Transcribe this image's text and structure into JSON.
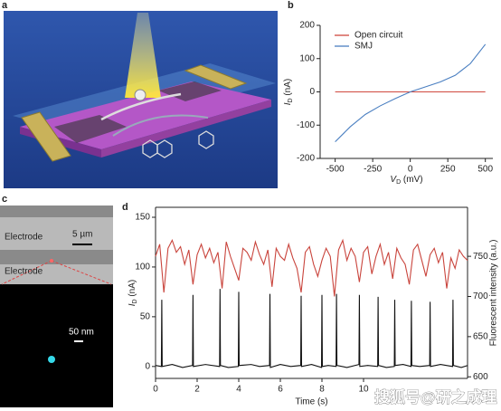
{
  "panel_labels": [
    "a",
    "b",
    "c",
    "d"
  ],
  "image_c": {
    "electrode_top": "Electrode",
    "scale_top": "5 µm",
    "electrode_bottom": "Electrode",
    "scale_bottom": "50 nm"
  },
  "watermark": "搜狐号@研之成理",
  "chart_data": [
    {
      "type": "line",
      "xlabel": [
        "V",
        "D",
        " (mV)"
      ],
      "ylabel": [
        "I",
        "D",
        " (nA)"
      ],
      "x": [
        -500,
        -400,
        -300,
        -200,
        -100,
        0,
        100,
        200,
        300,
        400,
        500
      ],
      "series": [
        {
          "name": "Open circuit",
          "color": "#d0493f",
          "values": [
            0,
            0,
            0,
            0,
            0,
            0,
            0,
            0,
            0,
            0,
            0
          ]
        },
        {
          "name": "SMJ",
          "color": "#4a7fc1",
          "values": [
            -150,
            -105,
            -68,
            -42,
            -20,
            0,
            15,
            30,
            50,
            85,
            143
          ]
        }
      ],
      "xlim": [
        -600,
        550
      ],
      "xticks": [
        -500,
        -250,
        0,
        250,
        500
      ],
      "ylim": [
        -200,
        200
      ],
      "yticks": [
        -200,
        -100,
        0,
        100,
        200
      ],
      "frame": "open",
      "legend": "upper left"
    },
    {
      "type": "line",
      "xlabel": "Time (s)",
      "ylabel": [
        "I",
        "D",
        " (nA)"
      ],
      "y2label": "Fluorescent intensity (a.u.)",
      "series": [
        {
          "color": "#c9443c",
          "axis": "y2",
          "x": [
            0,
            0.2,
            0.4,
            0.6,
            0.8,
            1.0,
            1.2,
            1.4,
            1.6,
            1.8,
            2.0,
            2.2,
            2.4,
            2.6,
            2.8,
            3.0,
            3.2,
            3.4,
            3.6,
            3.8,
            4.0,
            4.2,
            4.4,
            4.6,
            4.8,
            5.0,
            5.2,
            5.4,
            5.6,
            5.8,
            6.0,
            6.2,
            6.4,
            6.6,
            6.8,
            7.0,
            7.2,
            7.4,
            7.6,
            7.8,
            8.0,
            8.2,
            8.4,
            8.6,
            8.8,
            9.0,
            9.2,
            9.4,
            9.6,
            9.8,
            10.0,
            10.2,
            10.4,
            10.6,
            10.8,
            11.0,
            11.2,
            11.4,
            11.6,
            11.8,
            12.0,
            12.2,
            12.4,
            12.6,
            12.8,
            13.0,
            13.2,
            13.4,
            13.6,
            13.8,
            14.0,
            14.2,
            14.4,
            14.6,
            14.8,
            15.0
          ],
          "values": [
            750,
            765,
            705,
            760,
            770,
            755,
            762,
            740,
            758,
            715,
            752,
            765,
            748,
            760,
            742,
            755,
            710,
            768,
            750,
            735,
            720,
            760,
            755,
            745,
            768,
            752,
            740,
            758,
            712,
            760,
            750,
            745,
            765,
            748,
            735,
            705,
            755,
            762,
            740,
            725,
            745,
            760,
            750,
            700,
            758,
            770,
            745,
            760,
            750,
            718,
            755,
            762,
            728,
            750,
            765,
            740,
            755,
            722,
            760,
            748,
            740,
            715,
            758,
            765,
            745,
            725,
            752,
            760,
            742,
            755,
            710,
            748,
            735,
            758,
            750,
            745
          ]
        },
        {
          "color": "#111111",
          "x": [
            0,
            0.28,
            0.3,
            0.32,
            0.8,
            1.3,
            1.78,
            1.8,
            1.82,
            2.4,
            3.08,
            3.1,
            3.12,
            3.5,
            3.98,
            4.0,
            4.02,
            4.6,
            5.0,
            5.48,
            5.5,
            5.52,
            6.0,
            6.5,
            6.98,
            7.0,
            7.02,
            7.5,
            7.98,
            8.0,
            8.02,
            8.3,
            8.68,
            8.7,
            8.72,
            9.2,
            9.78,
            9.8,
            9.82,
            10.2,
            10.68,
            10.7,
            10.72,
            11.1,
            11.48,
            11.5,
            11.52,
            11.9,
            12.28,
            12.3,
            12.32,
            12.7,
            13.18,
            13.2,
            13.22,
            13.7,
            14.28,
            14.3,
            14.32,
            14.7,
            15
          ],
          "values": [
            1,
            0,
            67,
            0,
            2,
            -1,
            1,
            72,
            0,
            2,
            0,
            78,
            1,
            -1,
            0,
            75,
            1,
            2,
            0,
            1,
            73,
            -1,
            2,
            0,
            1,
            71,
            0,
            2,
            -1,
            72,
            0,
            1,
            0,
            73,
            1,
            -1,
            2,
            72,
            0,
            1,
            0,
            70,
            1,
            -1,
            0,
            67,
            1,
            2,
            0,
            66,
            1,
            0,
            1,
            65,
            0,
            2,
            0,
            67,
            1,
            -1,
            1
          ]
        }
      ],
      "xlim": [
        0,
        15
      ],
      "xticks": [
        0,
        2,
        4,
        6,
        8,
        10
      ],
      "ylim": [
        -12,
        160
      ],
      "yticks": [
        0,
        50,
        100,
        150
      ],
      "y2lim": [
        598,
        811
      ],
      "y2ticks": [
        600,
        650,
        700,
        750
      ],
      "frame": "box"
    }
  ]
}
